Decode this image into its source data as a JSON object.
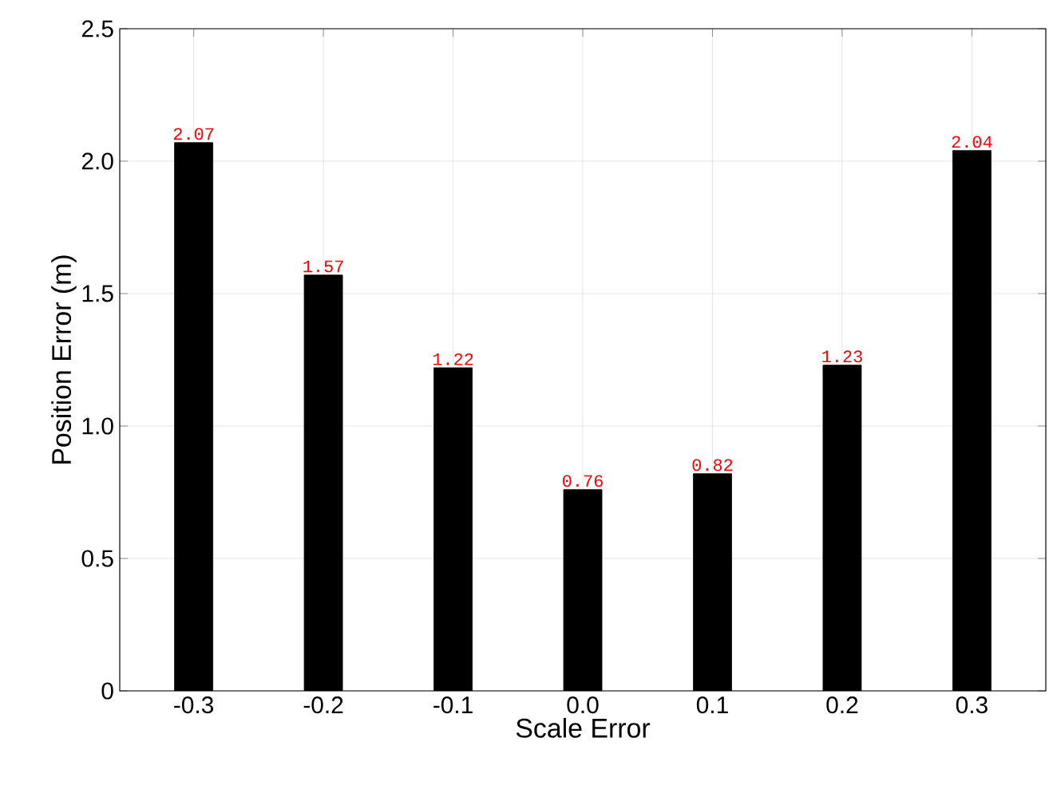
{
  "chart_data": {
    "type": "bar",
    "xlabel": "Scale Error",
    "ylabel": "Position Error (m)",
    "categories": [
      "-0.3",
      "-0.2",
      "-0.1",
      "0.0",
      "0.1",
      "0.2",
      "0.3"
    ],
    "values": [
      2.07,
      1.57,
      1.22,
      0.76,
      0.82,
      1.23,
      2.04
    ],
    "color": "#000000",
    "ylim": [
      0,
      2.5
    ],
    "yticks": [
      0,
      0.5,
      {
        "value": 1,
        "label": "1.0"
      },
      1.5,
      {
        "value": 2,
        "label": "2.0"
      },
      2.5
    ],
    "grid": true,
    "data_labels": true
  }
}
